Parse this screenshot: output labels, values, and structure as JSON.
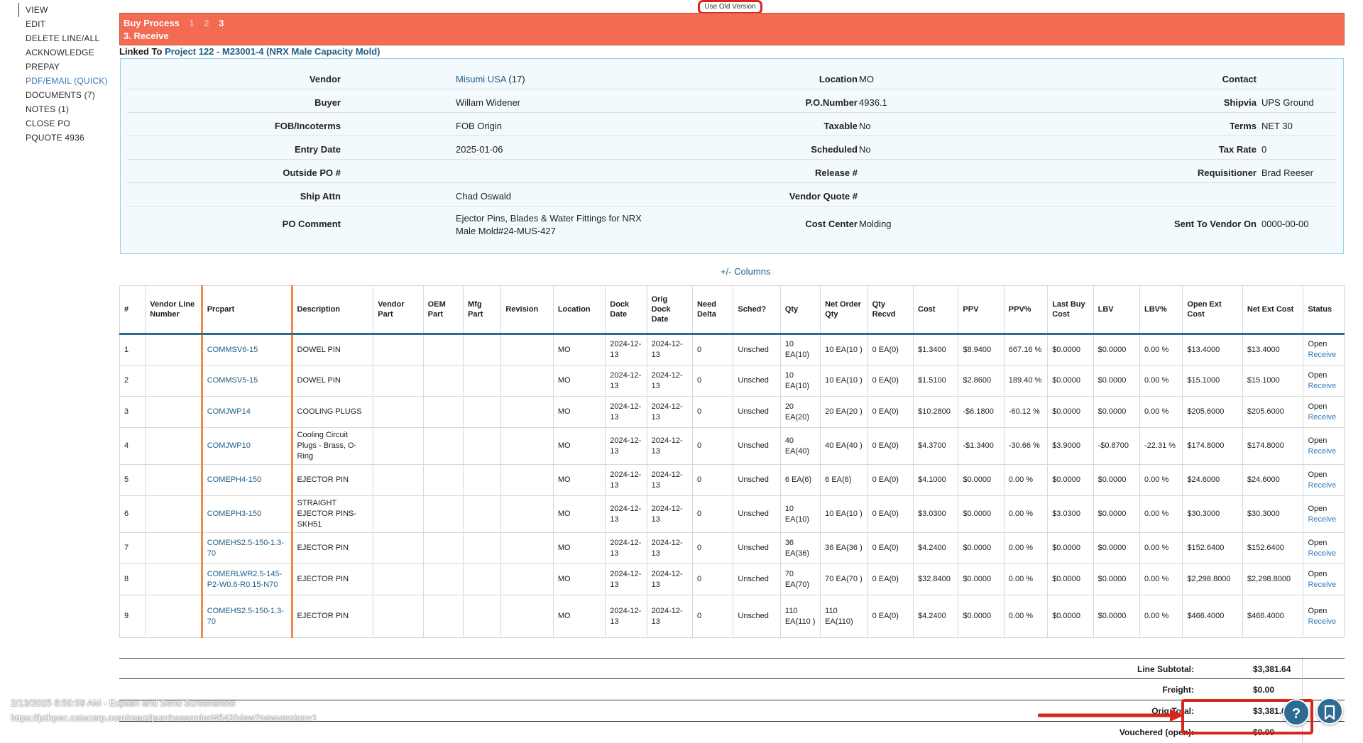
{
  "nav": {
    "items": [
      {
        "label": "VIEW",
        "state": "active"
      },
      {
        "label": "EDIT",
        "state": ""
      },
      {
        "label": "DELETE LINE/ALL",
        "state": ""
      },
      {
        "label": "ACKNOWLEDGE",
        "state": ""
      },
      {
        "label": "PREPAY",
        "state": ""
      },
      {
        "label": "PDF/EMAIL (QUICK)",
        "state": "blue"
      },
      {
        "label": "DOCUMENTS (7)",
        "state": ""
      },
      {
        "label": "NOTES (1)",
        "state": ""
      },
      {
        "label": "CLOSE PO",
        "state": ""
      },
      {
        "label": "PQUOTE 4936",
        "state": ""
      }
    ]
  },
  "old_version_label": "Use Old Version",
  "process": {
    "title": "Buy Process",
    "steps": [
      "1",
      "2",
      "3"
    ],
    "current_label": "3. Receive"
  },
  "linked": {
    "prefix": "Linked To",
    "link_text": "Project 122 - M23001-4 (NRX Male Capacity Mold)"
  },
  "info": {
    "vendor_label": "Vendor",
    "vendor_link": "Misumi USA",
    "vendor_count": "(17)",
    "location_label": "Location",
    "location": "MO",
    "contact_label": "Contact",
    "contact": "",
    "buyer_label": "Buyer",
    "buyer": "Willam Widener",
    "ponumber_label": "P.O.Number",
    "ponumber": "4936.1",
    "shipvia_label": "Shipvia",
    "shipvia": "UPS Ground",
    "fob_label": "FOB/Incoterms",
    "fob": "FOB Origin",
    "taxable_label": "Taxable",
    "taxable": "No",
    "terms_label": "Terms",
    "terms": "NET 30",
    "entry_label": "Entry Date",
    "entry": "2025-01-06",
    "scheduled_label": "Scheduled",
    "scheduled": "No",
    "taxrate_label": "Tax Rate",
    "taxrate": "0",
    "outside_label": "Outside PO #",
    "outside": "",
    "release_label": "Release #",
    "release": "",
    "requisitioner_label": "Requisitioner",
    "requisitioner": "Brad Reeser",
    "shipattn_label": "Ship Attn",
    "shipattn": "Chad Oswald",
    "vendorquote_label": "Vendor Quote #",
    "vendorquote": "",
    "pocomment_label": "PO Comment",
    "pocomment_l1": "Ejector Pins, Blades & Water Fittings for NRX",
    "pocomment_l2": "Male Mold#24-MUS-427",
    "costcenter_label": "Cost Center",
    "costcenter": "Molding",
    "sent_label": "Sent To Vendor On",
    "sent": "0000-00-00"
  },
  "columns_toggle": "+/- Columns",
  "table": {
    "headers": [
      "#",
      "Vendor Line Number",
      "Prcpart",
      "Description",
      "Vendor Part",
      "OEM Part",
      "Mfg Part",
      "Revision",
      "Location",
      "Dock Date",
      "Orig Dock Date",
      "Need Delta",
      "Sched?",
      "Qty",
      "Net Order Qty",
      "Qty Recvd",
      "Cost",
      "PPV",
      "PPV%",
      "Last Buy Cost",
      "LBV",
      "LBV%",
      "Open Ext Cost",
      "Net Ext Cost",
      "Status"
    ],
    "rows": [
      [
        "1",
        "",
        "COMMSV6-15",
        "DOWEL PIN",
        "",
        "",
        "",
        "",
        "MO",
        "2024-12-13",
        "2024-12-13",
        "0",
        "Unsched",
        "10 EA(10)",
        "10 EA(10 )",
        "0 EA(0)",
        "$1.3400",
        "$8.9400",
        "667.16 %",
        "$0.0000",
        "$0.0000",
        "0.00 %",
        "$13.4000",
        "$13.4000",
        "Open",
        "Receive"
      ],
      [
        "2",
        "",
        "COMMSV5-15",
        "DOWEL PIN",
        "",
        "",
        "",
        "",
        "MO",
        "2024-12-13",
        "2024-12-13",
        "0",
        "Unsched",
        "10 EA(10)",
        "10 EA(10 )",
        "0 EA(0)",
        "$1.5100",
        "$2.8600",
        "189.40 %",
        "$0.0000",
        "$0.0000",
        "0.00 %",
        "$15.1000",
        "$15.1000",
        "Open",
        "Receive"
      ],
      [
        "3",
        "",
        "COMJWP14",
        "COOLING PLUGS",
        "",
        "",
        "",
        "",
        "MO",
        "2024-12-13",
        "2024-12-13",
        "0",
        "Unsched",
        "20 EA(20)",
        "20 EA(20 )",
        "0 EA(0)",
        "$10.2800",
        "-$6.1800",
        "-60.12 %",
        "$0.0000",
        "$0.0000",
        "0.00 %",
        "$205.6000",
        "$205.6000",
        "Open",
        "Receive"
      ],
      [
        "4",
        "",
        "COMJWP10",
        "Cooling Circuit Plugs - Brass, O-Ring",
        "",
        "",
        "",
        "",
        "MO",
        "2024-12-13",
        "2024-12-13",
        "0",
        "Unsched",
        "40 EA(40)",
        "40 EA(40 )",
        "0 EA(0)",
        "$4.3700",
        "-$1.3400",
        "-30.66 %",
        "$3.9000",
        "-$0.8700",
        "-22.31 %",
        "$174.8000",
        "$174.8000",
        "Open",
        "Receive"
      ],
      [
        "5",
        "",
        "COMEPH4-150",
        "EJECTOR PIN",
        "",
        "",
        "",
        "",
        "MO",
        "2024-12-13",
        "2024-12-13",
        "0",
        "Unsched",
        "6 EA(6)",
        "6 EA(6)",
        "0 EA(0)",
        "$4.1000",
        "$0.0000",
        "0.00 %",
        "$0.0000",
        "$0.0000",
        "0.00 %",
        "$24.6000",
        "$24.6000",
        "Open",
        "Receive"
      ],
      [
        "6",
        "",
        "COMEPH3-150",
        "STRAIGHT EJECTOR PINS-SKH51",
        "",
        "",
        "",
        "",
        "MO",
        "2024-12-13",
        "2024-12-13",
        "0",
        "Unsched",
        "10 EA(10)",
        "10 EA(10 )",
        "0 EA(0)",
        "$3.0300",
        "$0.0000",
        "0.00 %",
        "$3.0300",
        "$0.0000",
        "0.00 %",
        "$30.3000",
        "$30.3000",
        "Open",
        "Receive"
      ],
      [
        "7",
        "",
        "COMEHS2.5-150-1.3-70",
        "EJECTOR PIN",
        "",
        "",
        "",
        "",
        "MO",
        "2024-12-13",
        "2024-12-13",
        "0",
        "Unsched",
        "36 EA(36)",
        "36 EA(36 )",
        "0 EA(0)",
        "$4.2400",
        "$0.0000",
        "0.00 %",
        "$0.0000",
        "$0.0000",
        "0.00 %",
        "$152.6400",
        "$152.6400",
        "Open",
        "Receive"
      ],
      [
        "8",
        "",
        "COMERLWR2.5-145-P2-W0.6-R0.15-N70",
        "EJECTOR PIN",
        "",
        "",
        "",
        "",
        "MO",
        "2024-12-13",
        "2024-12-13",
        "0",
        "Unsched",
        "70 EA(70)",
        "70 EA(70 )",
        "0 EA(0)",
        "$32.8400",
        "$0.0000",
        "0.00 %",
        "$0.0000",
        "$0.0000",
        "0.00 %",
        "$2,298.8000",
        "$2,298.8000",
        "Open",
        "Receive"
      ],
      [
        "9",
        "",
        "COMEHS2.5-150-1.3-70",
        "EJECTOR PIN",
        "",
        "",
        "",
        "",
        "MO",
        "2024-12-13",
        "2024-12-13",
        "0",
        "Unsched",
        "110 EA(110 )",
        "110 EA(110)",
        "0 EA(0)",
        "$4.2400",
        "$0.0000",
        "0.00 %",
        "$0.0000",
        "$0.0000",
        "0.00 %",
        "$466.4000",
        "$466.4000",
        "Open",
        "Receive"
      ]
    ]
  },
  "totals": {
    "subtotal_label": "Line Subtotal:",
    "subtotal": "$3,381.64",
    "freight_label": "Freight:",
    "freight": "$0.00",
    "orig_label": "Orig Total:",
    "orig": "$3,381.6",
    "vouchered_label": "Vouchered (open):",
    "vouchered": "$0.00"
  },
  "overlay": {
    "timestamp": "2/13/2025 8:50:59 AM - Explain and Send Screenshots",
    "url": "https://jsthpec.cetecerp.com/react/purchaseorder/4543/view?newversion=1",
    "help_glyph": "?",
    "accent": "#d9261c"
  }
}
